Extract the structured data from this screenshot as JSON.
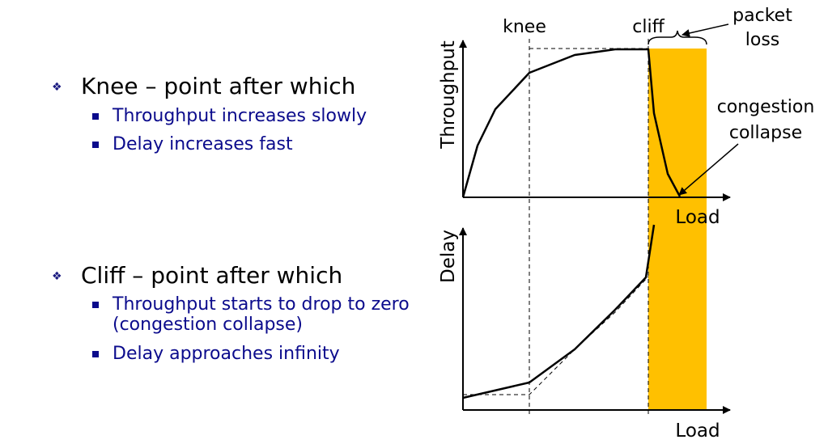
{
  "bullets": [
    {
      "title": "Knee – point after which",
      "subs": [
        "Throughput increases slowly",
        "Delay increases fast"
      ]
    },
    {
      "title": "Cliff – point after which",
      "subs": [
        "Throughput starts to drop to zero",
        "(congestion collapse)",
        "Delay approaches infinity"
      ]
    }
  ],
  "diagram": {
    "label_knee": "knee",
    "label_cliff": "cliff",
    "label_packet_loss_1": "packet",
    "label_packet_loss_2": "loss",
    "label_collapse_1": "congestion",
    "label_collapse_2": "collapse",
    "top_ylabel": "Throughput",
    "top_xlabel": "Load",
    "bottom_ylabel": "Delay",
    "bottom_xlabel": "Load",
    "highlight_color": "#FFC000"
  }
}
